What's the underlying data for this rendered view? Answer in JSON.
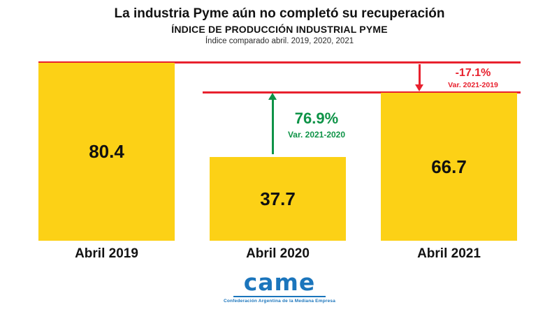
{
  "chart_data": {
    "type": "bar",
    "title": "La industria Pyme aún no completó su recuperación",
    "subtitle": "ÍNDICE DE PRODUCCIÓN INDUSTRIAL PYME",
    "caption": "Índice comparado abril. 2019, 2020, 2021",
    "categories": [
      "Abril 2019",
      "Abril 2020",
      "Abril 2021"
    ],
    "values": [
      80.4,
      37.7,
      66.7
    ],
    "bar_color": "#FCD116",
    "ylim": [
      0,
      80.4
    ],
    "grid": false,
    "legend": false,
    "annotations": [
      {
        "label": "76.9%",
        "sub": "Var. 2021-2020",
        "color": "#0E9347",
        "arrow": "up",
        "from": "Abril 2020 top",
        "to": "Abril 2021 level"
      },
      {
        "label": "-17.1%",
        "sub": "Var. 2021-2019",
        "color": "#E8212E",
        "arrow": "down",
        "from": "Abril 2019 level",
        "to": "Abril 2021 level"
      }
    ],
    "reference_lines": [
      "Abril 2019 level",
      "Abril 2021 level"
    ],
    "reference_line_color": "#E8212E"
  },
  "footer": {
    "logo_text": "came",
    "logo_tagline": "Confederación Argentina de la Mediana Empresa"
  }
}
